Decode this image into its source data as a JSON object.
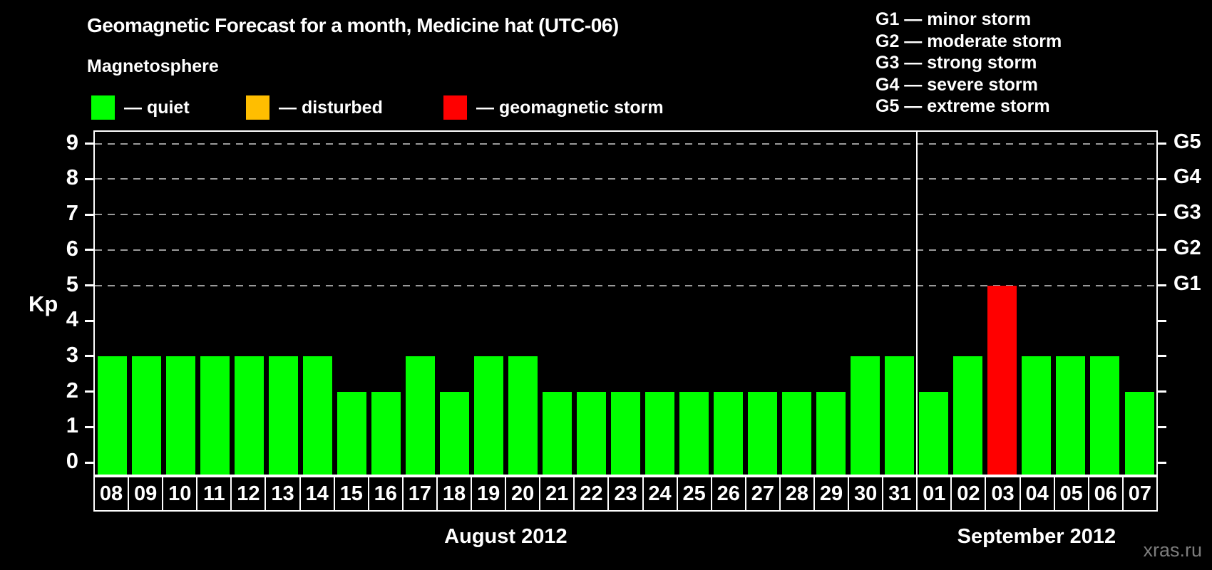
{
  "title": "Geomagnetic Forecast for a month, Medicine hat (UTC-06)",
  "legend": {
    "heading": "Magnetosphere",
    "items": [
      {
        "label": "— quiet",
        "color": "#00ff00",
        "key": "quiet"
      },
      {
        "label": "— disturbed",
        "color": "#ffbe00",
        "key": "disturbed"
      },
      {
        "label": "— geomagnetic storm",
        "color": "#ff0000",
        "key": "storm"
      }
    ]
  },
  "g_legend": [
    "G1 — minor storm",
    "G2 — moderate storm",
    "G3 — strong storm",
    "G4 — severe storm",
    "G5 — extreme storm"
  ],
  "watermark": "xras.ru",
  "chart_data": {
    "type": "bar",
    "title": "Geomagnetic Forecast for a month, Medicine hat (UTC-06)",
    "ylabel": "Kp",
    "ylim": [
      0,
      9.4
    ],
    "yticks": [
      0,
      1,
      2,
      3,
      4,
      5,
      6,
      7,
      8,
      9
    ],
    "gridlines_at_kp": [
      5,
      6,
      7,
      8,
      9
    ],
    "grid_style": "dashed horizontal lines at storm thresholds only",
    "right_axis": [
      {
        "kp": 5,
        "label": "G1"
      },
      {
        "kp": 6,
        "label": "G2"
      },
      {
        "kp": 7,
        "label": "G3"
      },
      {
        "kp": 8,
        "label": "G4"
      },
      {
        "kp": 9,
        "label": "G5"
      }
    ],
    "colors": {
      "quiet": "#00ff00",
      "disturbed": "#ffbe00",
      "storm": "#ff0000",
      "grid": "#9a9a9a"
    },
    "months": [
      {
        "label": "August 2012",
        "start_index": 0,
        "days": 24
      },
      {
        "label": "September 2012",
        "start_index": 24,
        "days": 7
      }
    ],
    "bars": [
      {
        "day": "08",
        "kp": 3,
        "status": "quiet"
      },
      {
        "day": "09",
        "kp": 3,
        "status": "quiet"
      },
      {
        "day": "10",
        "kp": 3,
        "status": "quiet"
      },
      {
        "day": "11",
        "kp": 3,
        "status": "quiet"
      },
      {
        "day": "12",
        "kp": 3,
        "status": "quiet"
      },
      {
        "day": "13",
        "kp": 3,
        "status": "quiet"
      },
      {
        "day": "14",
        "kp": 3,
        "status": "quiet"
      },
      {
        "day": "15",
        "kp": 2,
        "status": "quiet"
      },
      {
        "day": "16",
        "kp": 2,
        "status": "quiet"
      },
      {
        "day": "17",
        "kp": 3,
        "status": "quiet"
      },
      {
        "day": "18",
        "kp": 2,
        "status": "quiet"
      },
      {
        "day": "19",
        "kp": 3,
        "status": "quiet"
      },
      {
        "day": "20",
        "kp": 3,
        "status": "quiet"
      },
      {
        "day": "21",
        "kp": 2,
        "status": "quiet"
      },
      {
        "day": "22",
        "kp": 2,
        "status": "quiet"
      },
      {
        "day": "23",
        "kp": 2,
        "status": "quiet"
      },
      {
        "day": "24",
        "kp": 2,
        "status": "quiet"
      },
      {
        "day": "25",
        "kp": 2,
        "status": "quiet"
      },
      {
        "day": "26",
        "kp": 2,
        "status": "quiet"
      },
      {
        "day": "27",
        "kp": 2,
        "status": "quiet"
      },
      {
        "day": "28",
        "kp": 2,
        "status": "quiet"
      },
      {
        "day": "29",
        "kp": 2,
        "status": "quiet"
      },
      {
        "day": "30",
        "kp": 3,
        "status": "quiet"
      },
      {
        "day": "31",
        "kp": 3,
        "status": "quiet"
      },
      {
        "day": "01",
        "kp": 2,
        "status": "quiet"
      },
      {
        "day": "02",
        "kp": 3,
        "status": "quiet"
      },
      {
        "day": "03",
        "kp": 5,
        "status": "storm"
      },
      {
        "day": "04",
        "kp": 3,
        "status": "quiet"
      },
      {
        "day": "05",
        "kp": 3,
        "status": "quiet"
      },
      {
        "day": "06",
        "kp": 3,
        "status": "quiet"
      },
      {
        "day": "07",
        "kp": 2,
        "status": "quiet"
      }
    ]
  }
}
